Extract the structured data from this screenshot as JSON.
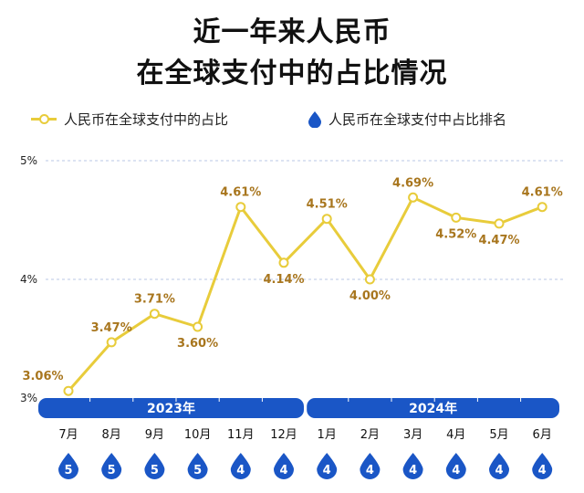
{
  "title_line1": "近一年来人民币",
  "title_line2": "在全球支付中的占比情况",
  "legend": {
    "share_label": "人民币在全球支付中的占比",
    "rank_label": "人民币在全球支付中占比排名"
  },
  "colors": {
    "line": "#e8cc3b",
    "label": "#a8761e",
    "bar": "#1a56c6",
    "grid": "#b9c7e6"
  },
  "chart_data": {
    "type": "line",
    "title": "近一年来人民币在全球支付中的占比情况",
    "categories": [
      "7月",
      "8月",
      "9月",
      "10月",
      "11月",
      "12月",
      "1月",
      "2月",
      "3月",
      "4月",
      "5月",
      "6月"
    ],
    "years": [
      {
        "label": "2023年",
        "months": 6
      },
      {
        "label": "2024年",
        "months": 6
      }
    ],
    "series": [
      {
        "name": "人民币在全球支付中的占比",
        "values": [
          3.06,
          3.47,
          3.71,
          3.6,
          4.61,
          4.14,
          4.51,
          4.0,
          4.69,
          4.52,
          4.47,
          4.61
        ],
        "labels": [
          "3.06%",
          "3.47%",
          "3.71%",
          "3.60%",
          "4.61%",
          "4.14%",
          "4.51%",
          "4.00%",
          "4.69%",
          "4.52%",
          "4.47%",
          "4.61%"
        ]
      },
      {
        "name": "人民币在全球支付中占比排名",
        "values": [
          5,
          5,
          5,
          5,
          4,
          4,
          4,
          4,
          4,
          4,
          4,
          4
        ]
      }
    ],
    "yticks": [
      "3%",
      "4%",
      "5%"
    ],
    "ylim": [
      3,
      5
    ],
    "grid": true,
    "legend_position": "top"
  }
}
